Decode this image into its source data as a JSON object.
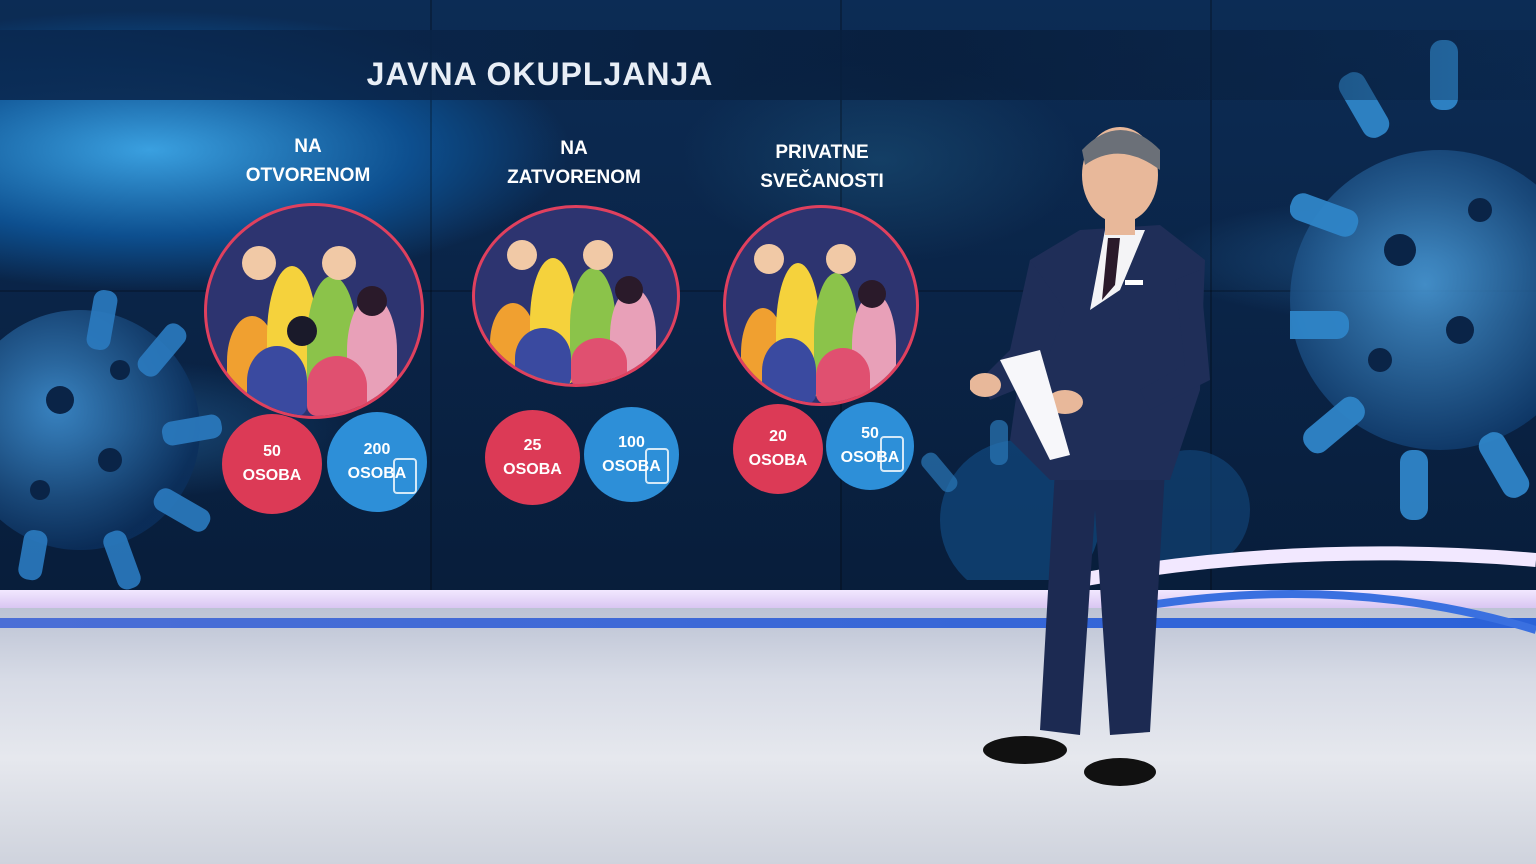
{
  "graphic": {
    "title": "JAVNA OKUPLJANJA",
    "columns": [
      {
        "label_line1": "NA",
        "label_line2": "OTVORENOM",
        "limit_red": {
          "number": "50",
          "unit": "OSOBA"
        },
        "limit_blue": {
          "number": "200",
          "unit": "OSOBA"
        }
      },
      {
        "label_line1": "NA",
        "label_line2": "ZATVORENOM",
        "limit_red": {
          "number": "25",
          "unit": "OSOBA"
        },
        "limit_blue": {
          "number": "100",
          "unit": "OSOBA"
        }
      },
      {
        "label_line1": "PRIVATNE",
        "label_line2": "SVEČANOSTI",
        "limit_red": {
          "number": "20",
          "unit": "OSOBA"
        },
        "limit_blue": {
          "number": "50",
          "unit": "OSOBA"
        }
      }
    ]
  },
  "colors": {
    "accent_red": "#dc3a56",
    "accent_blue": "#2d8fd8",
    "crowd_ring": "#e0405e",
    "suit": "#1c2a52"
  },
  "icons": {
    "crowd": "masked-crowd-illustration",
    "certificate": "phone-certificate-icon"
  }
}
